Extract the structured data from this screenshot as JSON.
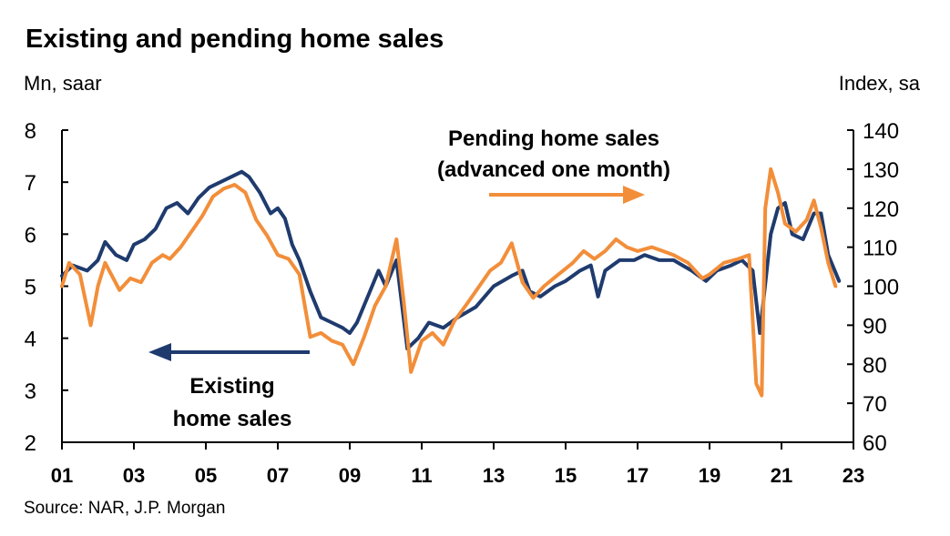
{
  "chart_data": {
    "type": "line",
    "title": "Existing and pending home sales",
    "y_left_label": "Mn, saar",
    "y_right_label": "Index, sa",
    "source": "Source: NAR, J.P. Morgan",
    "x_ticks": [
      "01",
      "03",
      "05",
      "07",
      "09",
      "11",
      "13",
      "15",
      "17",
      "19",
      "21",
      "23"
    ],
    "x_range": [
      2001,
      2023
    ],
    "y_left_range": [
      2,
      8
    ],
    "y_left_ticks": [
      "2",
      "3",
      "4",
      "5",
      "6",
      "7",
      "8"
    ],
    "y_right_range": [
      60,
      140
    ],
    "y_right_ticks": [
      "60",
      "70",
      "80",
      "90",
      "100",
      "110",
      "120",
      "130",
      "140"
    ],
    "grid": false,
    "colors": {
      "existing": "#1f3b6e",
      "pending": "#f28e3a"
    },
    "annotations": {
      "pending_line1": "Pending home sales",
      "pending_line2": "(advanced one month)",
      "existing_line1": "Existing",
      "existing_line2": "home sales"
    },
    "series": [
      {
        "name": "Existing home sales",
        "axis": "left",
        "points": [
          [
            2001.0,
            5.2
          ],
          [
            2001.3,
            5.4
          ],
          [
            2001.7,
            5.3
          ],
          [
            2002.0,
            5.5
          ],
          [
            2002.2,
            5.85
          ],
          [
            2002.5,
            5.6
          ],
          [
            2002.8,
            5.5
          ],
          [
            2003.0,
            5.8
          ],
          [
            2003.3,
            5.9
          ],
          [
            2003.6,
            6.1
          ],
          [
            2003.9,
            6.5
          ],
          [
            2004.2,
            6.6
          ],
          [
            2004.5,
            6.4
          ],
          [
            2004.8,
            6.7
          ],
          [
            2005.1,
            6.9
          ],
          [
            2005.4,
            7.0
          ],
          [
            2005.7,
            7.1
          ],
          [
            2006.0,
            7.2
          ],
          [
            2006.2,
            7.1
          ],
          [
            2006.5,
            6.8
          ],
          [
            2006.8,
            6.4
          ],
          [
            2007.0,
            6.5
          ],
          [
            2007.2,
            6.3
          ],
          [
            2007.4,
            5.8
          ],
          [
            2007.6,
            5.5
          ],
          [
            2007.9,
            4.9
          ],
          [
            2008.2,
            4.4
          ],
          [
            2008.5,
            4.3
          ],
          [
            2008.8,
            4.2
          ],
          [
            2009.0,
            4.1
          ],
          [
            2009.2,
            4.3
          ],
          [
            2009.5,
            4.8
          ],
          [
            2009.8,
            5.3
          ],
          [
            2010.0,
            5.0
          ],
          [
            2010.3,
            5.5
          ],
          [
            2010.6,
            3.8
          ],
          [
            2010.9,
            4.0
          ],
          [
            2011.2,
            4.3
          ],
          [
            2011.6,
            4.2
          ],
          [
            2012.0,
            4.4
          ],
          [
            2012.5,
            4.6
          ],
          [
            2013.0,
            5.0
          ],
          [
            2013.5,
            5.2
          ],
          [
            2013.8,
            5.3
          ],
          [
            2014.0,
            4.9
          ],
          [
            2014.3,
            4.8
          ],
          [
            2014.7,
            5.0
          ],
          [
            2015.0,
            5.1
          ],
          [
            2015.4,
            5.3
          ],
          [
            2015.7,
            5.4
          ],
          [
            2015.9,
            4.8
          ],
          [
            2016.1,
            5.3
          ],
          [
            2016.5,
            5.5
          ],
          [
            2016.9,
            5.5
          ],
          [
            2017.2,
            5.6
          ],
          [
            2017.6,
            5.5
          ],
          [
            2018.0,
            5.5
          ],
          [
            2018.5,
            5.3
          ],
          [
            2018.9,
            5.1
          ],
          [
            2019.2,
            5.3
          ],
          [
            2019.6,
            5.4
          ],
          [
            2019.9,
            5.5
          ],
          [
            2020.2,
            5.3
          ],
          [
            2020.4,
            4.1
          ],
          [
            2020.7,
            6.0
          ],
          [
            2020.9,
            6.5
          ],
          [
            2021.1,
            6.6
          ],
          [
            2021.3,
            6.0
          ],
          [
            2021.6,
            5.9
          ],
          [
            2021.9,
            6.4
          ],
          [
            2022.1,
            6.4
          ],
          [
            2022.3,
            5.6
          ],
          [
            2022.6,
            5.1
          ]
        ]
      },
      {
        "name": "Pending home sales (advanced one month)",
        "axis": "right",
        "points": [
          [
            2001.0,
            100
          ],
          [
            2001.2,
            106
          ],
          [
            2001.5,
            103
          ],
          [
            2001.8,
            90
          ],
          [
            2002.0,
            100
          ],
          [
            2002.2,
            106
          ],
          [
            2002.6,
            99
          ],
          [
            2002.9,
            102
          ],
          [
            2003.2,
            101
          ],
          [
            2003.5,
            106
          ],
          [
            2003.8,
            108
          ],
          [
            2004.0,
            107
          ],
          [
            2004.3,
            110
          ],
          [
            2004.6,
            114
          ],
          [
            2004.9,
            118
          ],
          [
            2005.2,
            123
          ],
          [
            2005.5,
            125
          ],
          [
            2005.8,
            126
          ],
          [
            2006.1,
            124
          ],
          [
            2006.4,
            117
          ],
          [
            2006.7,
            113
          ],
          [
            2007.0,
            108
          ],
          [
            2007.3,
            107
          ],
          [
            2007.6,
            103
          ],
          [
            2007.9,
            87
          ],
          [
            2008.2,
            88
          ],
          [
            2008.5,
            86
          ],
          [
            2008.8,
            85
          ],
          [
            2009.1,
            80
          ],
          [
            2009.4,
            87
          ],
          [
            2009.7,
            95
          ],
          [
            2010.0,
            100
          ],
          [
            2010.3,
            112
          ],
          [
            2010.5,
            96
          ],
          [
            2010.7,
            78
          ],
          [
            2011.0,
            86
          ],
          [
            2011.3,
            88
          ],
          [
            2011.6,
            85
          ],
          [
            2011.9,
            91
          ],
          [
            2012.3,
            96
          ],
          [
            2012.6,
            100
          ],
          [
            2012.9,
            104
          ],
          [
            2013.2,
            106
          ],
          [
            2013.5,
            111
          ],
          [
            2013.8,
            101
          ],
          [
            2014.1,
            97
          ],
          [
            2014.4,
            100
          ],
          [
            2014.8,
            103
          ],
          [
            2015.2,
            106
          ],
          [
            2015.5,
            109
          ],
          [
            2015.8,
            107
          ],
          [
            2016.1,
            109
          ],
          [
            2016.4,
            112
          ],
          [
            2016.7,
            110
          ],
          [
            2017.0,
            109
          ],
          [
            2017.4,
            110
          ],
          [
            2017.7,
            109
          ],
          [
            2018.0,
            108
          ],
          [
            2018.4,
            106
          ],
          [
            2018.8,
            102
          ],
          [
            2019.0,
            103
          ],
          [
            2019.4,
            106
          ],
          [
            2019.8,
            107
          ],
          [
            2020.1,
            108
          ],
          [
            2020.3,
            75
          ],
          [
            2020.45,
            72
          ],
          [
            2020.55,
            120
          ],
          [
            2020.7,
            130
          ],
          [
            2020.9,
            124
          ],
          [
            2021.1,
            116
          ],
          [
            2021.4,
            114
          ],
          [
            2021.7,
            117
          ],
          [
            2021.9,
            122
          ],
          [
            2022.1,
            115
          ],
          [
            2022.3,
            106
          ],
          [
            2022.5,
            100
          ]
        ]
      }
    ]
  }
}
